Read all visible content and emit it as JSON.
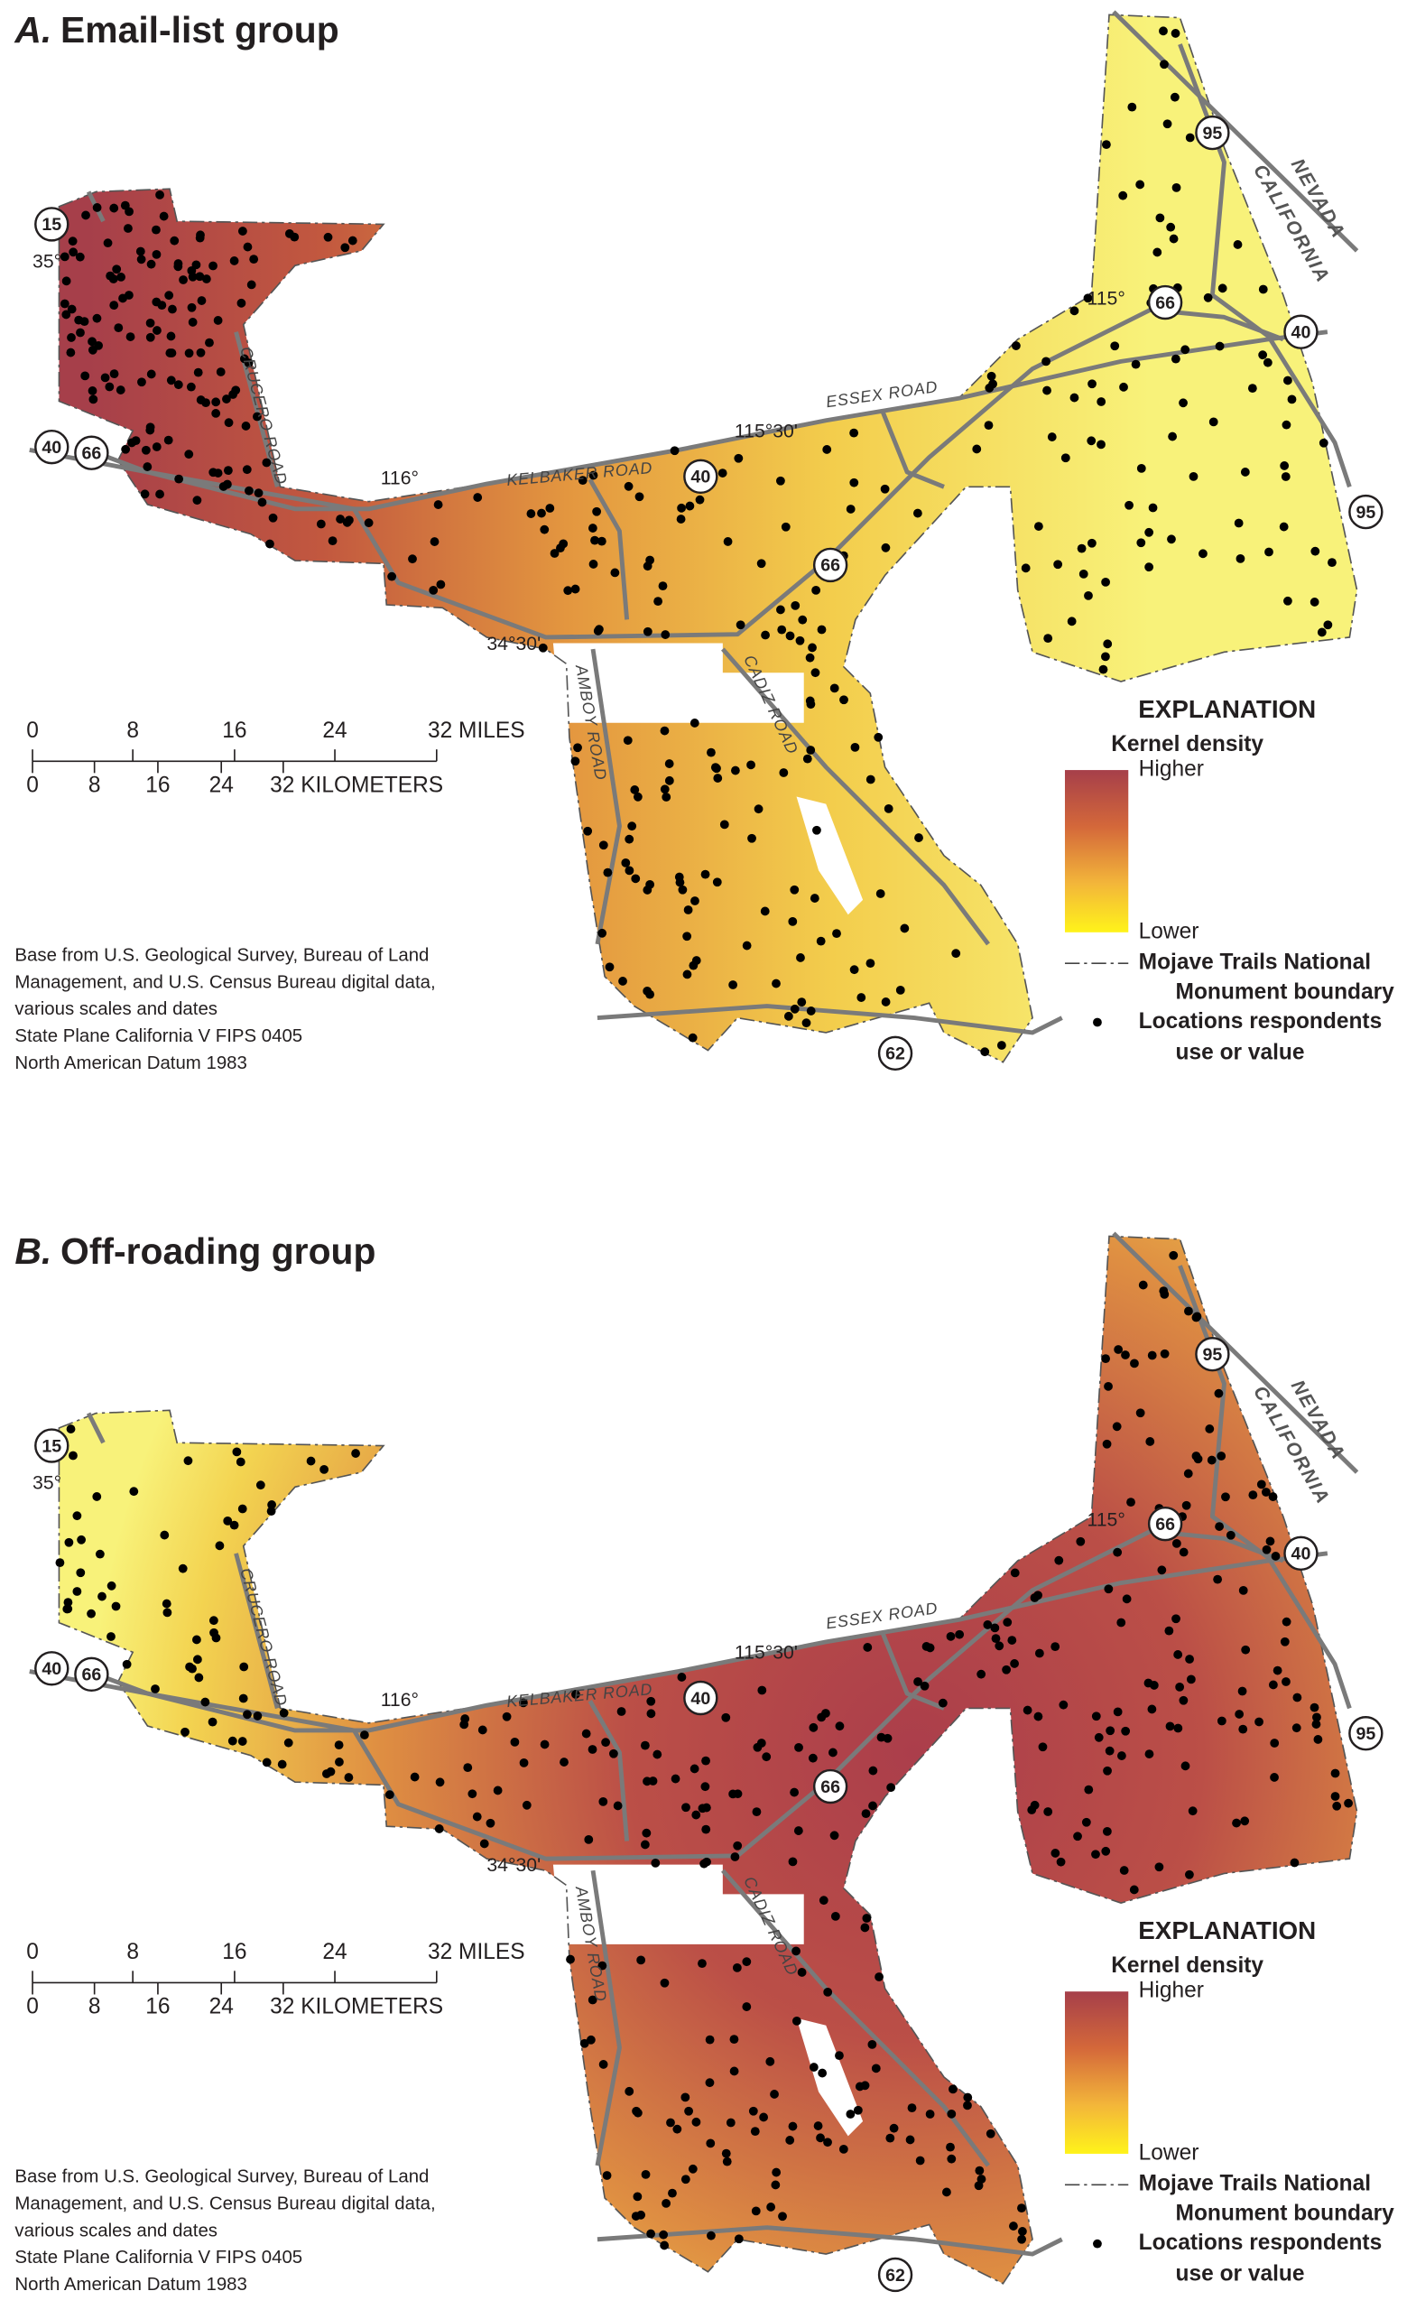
{
  "panels": [
    {
      "title_letter": "A.",
      "title": "Email-list group",
      "map_labels": {
        "lat_35": "35°",
        "lon_116": "116°",
        "lon_115_30": "115°30'",
        "lon_115": "115°",
        "lat_34_30": "34°30'",
        "crucero": "CRUCERO ROAD",
        "kelbaker": "KELBAKER ROAD",
        "essex": "ESSEX ROAD",
        "amboy": "AMBOY ROAD",
        "cadiz": "CADIZ ROAD",
        "nevada": "NEVADA",
        "california": "CALIFORNIA"
      },
      "shields": [
        "15",
        "40",
        "66",
        "40",
        "95",
        "66",
        "40",
        "95",
        "66",
        "62"
      ],
      "scale_miles": [
        "0",
        "8",
        "16",
        "24",
        "32 MILES"
      ],
      "scale_km": [
        "0",
        "8",
        "16",
        "24",
        "32 KILOMETERS"
      ],
      "explanation": {
        "heading": "EXPLANATION",
        "density": "Kernel density",
        "higher": "Higher",
        "lower": "Lower",
        "boundary": [
          "Mojave Trails National",
          "Monument boundary"
        ],
        "locations": [
          "Locations respondents",
          "use or value"
        ]
      },
      "credits": [
        "Base from U.S. Geological Survey,  Bureau of Land",
        "Management, and U.S. Census Bureau digital data,",
        "various scales and dates",
        "State Plane California V FIPS 0405",
        "North American Datum 1983"
      ]
    },
    {
      "title_letter": "B.",
      "title": "Off-roading group",
      "map_labels": {
        "lat_35": "35°",
        "lon_116": "116°",
        "lon_115_30": "115°30'",
        "lon_115": "115°",
        "lat_34_30": "34°30'",
        "crucero": "CRUCERO ROAD",
        "kelbaker": "KELBAKER ROAD",
        "essex": "ESSEX ROAD",
        "amboy": "AMBOY ROAD",
        "cadiz": "CADIZ ROAD",
        "nevada": "NEVADA",
        "california": "CALIFORNIA"
      },
      "shields": [
        "15",
        "40",
        "66",
        "40",
        "95",
        "66",
        "40",
        "95",
        "66",
        "62"
      ],
      "scale_miles": [
        "0",
        "8",
        "16",
        "24",
        "32 MILES"
      ],
      "scale_km": [
        "0",
        "8",
        "16",
        "24",
        "32 KILOMETERS"
      ],
      "explanation": {
        "heading": "EXPLANATION",
        "density": "Kernel density",
        "higher": "Higher",
        "lower": "Lower",
        "boundary": [
          "Mojave Trails National",
          "Monument boundary"
        ],
        "locations": [
          "Locations respondents",
          "use or value"
        ]
      },
      "credits": [
        "Base from U.S. Geological Survey,  Bureau of Land",
        "Management, and U.S. Census Bureau digital data,",
        "various scales and dates",
        "State Plane California V FIPS 0405",
        "North American Datum 1983"
      ]
    }
  ]
}
